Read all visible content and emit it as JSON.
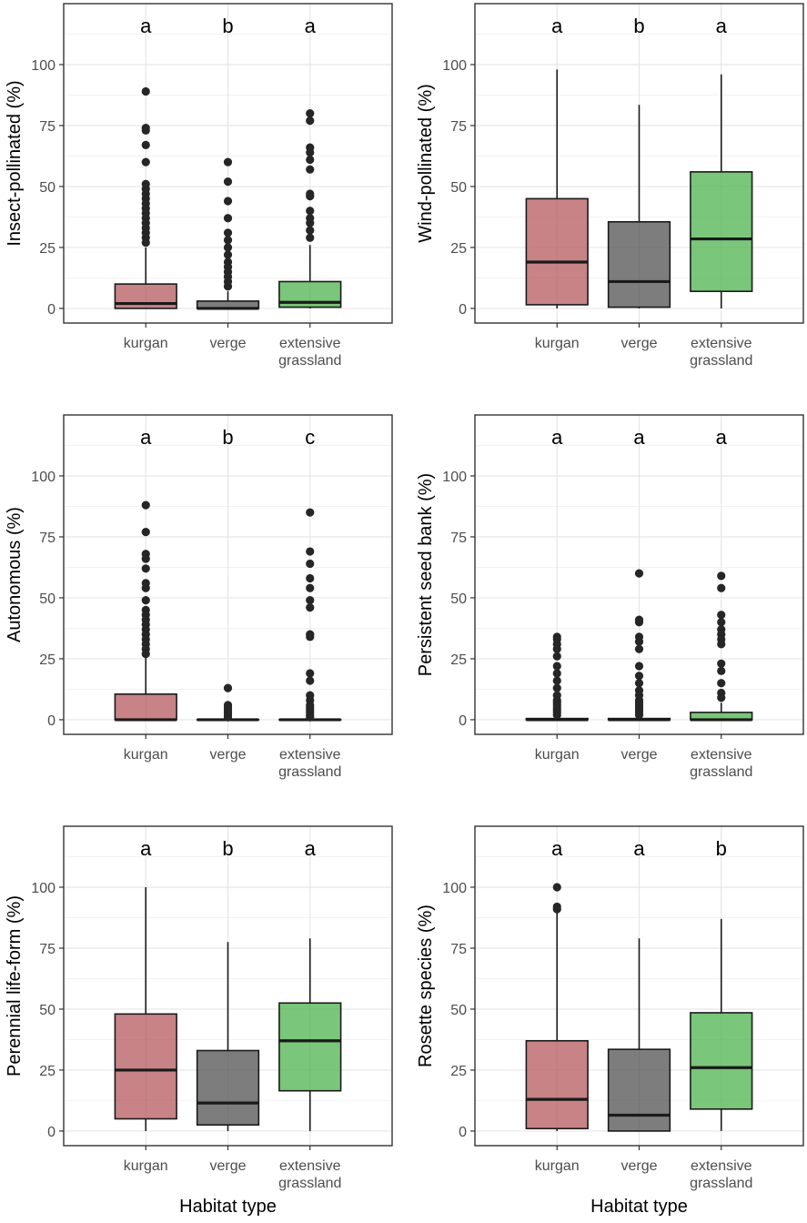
{
  "chart_data": [
    {
      "type": "boxplot",
      "ylabel": "Insect-pollinated (%)",
      "xlabel": "",
      "categories": [
        "kurgan",
        "verge",
        "extensive grassland"
      ],
      "tick_labels": [
        [
          "kurgan"
        ],
        [
          "verge"
        ],
        [
          "extensive",
          "grassland"
        ]
      ],
      "ylim": [
        -6,
        125
      ],
      "yticks": [
        0,
        25,
        50,
        75,
        100
      ],
      "letters": [
        "a",
        "b",
        "a"
      ],
      "boxes": [
        {
          "q1": 0,
          "median": 2,
          "q3": 10,
          "whisker_low": 0,
          "whisker_high": 25,
          "outliers": [
            27,
            29,
            31,
            33,
            35,
            37,
            39,
            41,
            43,
            45,
            47,
            49,
            51,
            60,
            67,
            73,
            74,
            89
          ]
        },
        {
          "q1": 0,
          "median": 0,
          "q3": 3,
          "whisker_low": 0,
          "whisker_high": 7,
          "outliers": [
            9,
            11,
            13,
            15,
            17,
            19,
            22,
            25,
            28,
            31,
            37,
            44,
            52,
            60
          ]
        },
        {
          "q1": 0.5,
          "median": 2.5,
          "q3": 11,
          "whisker_low": 0,
          "whisker_high": 26,
          "outliers": [
            29,
            32,
            35,
            37,
            40,
            46,
            47,
            57,
            61,
            64,
            66,
            77,
            80
          ]
        }
      ]
    },
    {
      "type": "boxplot",
      "ylabel": "Wind-pollinated (%)",
      "xlabel": "",
      "categories": [
        "kurgan",
        "verge",
        "extensive grassland"
      ],
      "tick_labels": [
        [
          "kurgan"
        ],
        [
          "verge"
        ],
        [
          "extensive",
          "grassland"
        ]
      ],
      "ylim": [
        -6,
        125
      ],
      "yticks": [
        0,
        25,
        50,
        75,
        100
      ],
      "letters": [
        "a",
        "b",
        "a"
      ],
      "boxes": [
        {
          "q1": 1.5,
          "median": 19,
          "q3": 45,
          "whisker_low": 0,
          "whisker_high": 98,
          "outliers": []
        },
        {
          "q1": 0.5,
          "median": 11,
          "q3": 35.5,
          "whisker_low": 0,
          "whisker_high": 83.5,
          "outliers": []
        },
        {
          "q1": 7,
          "median": 28.5,
          "q3": 56,
          "whisker_low": 0,
          "whisker_high": 96,
          "outliers": []
        }
      ]
    },
    {
      "type": "boxplot",
      "ylabel": "Autonomous (%)",
      "xlabel": "",
      "categories": [
        "kurgan",
        "verge",
        "extensive grassland"
      ],
      "tick_labels": [
        [
          "kurgan"
        ],
        [
          "verge"
        ],
        [
          "extensive",
          "grassland"
        ]
      ],
      "ylim": [
        -6,
        125
      ],
      "yticks": [
        0,
        25,
        50,
        75,
        100
      ],
      "letters": [
        "a",
        "b",
        "c"
      ],
      "boxes": [
        {
          "q1": 0,
          "median": 0,
          "q3": 10.5,
          "whisker_low": 0,
          "whisker_high": 26,
          "outliers": [
            27,
            29,
            31,
            33,
            35,
            37,
            39,
            41,
            43,
            45,
            49,
            54,
            56,
            62,
            66,
            68,
            77,
            88
          ]
        },
        {
          "q1": 0,
          "median": 0,
          "q3": 0,
          "whisker_low": 0,
          "whisker_high": 0,
          "outliers": [
            1,
            2,
            3,
            4,
            5,
            6,
            13
          ]
        },
        {
          "q1": 0,
          "median": 0,
          "q3": 0,
          "whisker_low": 0,
          "whisker_high": 0,
          "outliers": [
            1,
            2,
            3,
            4,
            5,
            6,
            8,
            10,
            16,
            19,
            34,
            35,
            46,
            49,
            54,
            58,
            64,
            69,
            85
          ]
        }
      ]
    },
    {
      "type": "boxplot",
      "ylabel": "Persistent seed bank (%)",
      "xlabel": "",
      "categories": [
        "kurgan",
        "verge",
        "extensive grassland"
      ],
      "tick_labels": [
        [
          "kurgan"
        ],
        [
          "verge"
        ],
        [
          "extensive",
          "grassland"
        ]
      ],
      "ylim": [
        -6,
        125
      ],
      "yticks": [
        0,
        25,
        50,
        75,
        100
      ],
      "letters": [
        "a",
        "a",
        "a"
      ],
      "boxes": [
        {
          "q1": 0,
          "median": 0,
          "q3": 0.5,
          "whisker_low": 0,
          "whisker_high": 1,
          "outliers": [
            2,
            3,
            4,
            5,
            6,
            7,
            8,
            10,
            13,
            16,
            19,
            22,
            26,
            29,
            31,
            33,
            34
          ]
        },
        {
          "q1": 0,
          "median": 0,
          "q3": 0.5,
          "whisker_low": 0,
          "whisker_high": 1,
          "outliers": [
            2,
            3,
            4,
            5,
            6,
            7,
            8,
            10,
            12,
            15,
            18,
            22,
            29,
            32,
            34,
            40,
            41,
            60
          ]
        },
        {
          "q1": 0,
          "median": 0,
          "q3": 3,
          "whisker_low": 0,
          "whisker_high": 7,
          "outliers": [
            9,
            11,
            15,
            20,
            23,
            31,
            33,
            35,
            37,
            40,
            43,
            54,
            59
          ]
        }
      ]
    },
    {
      "type": "boxplot",
      "ylabel": "Perennial life-form (%)",
      "xlabel": "Habitat type",
      "categories": [
        "kurgan",
        "verge",
        "extensive grassland"
      ],
      "tick_labels": [
        [
          "kurgan"
        ],
        [
          "verge"
        ],
        [
          "extensive",
          "grassland"
        ]
      ],
      "ylim": [
        -6,
        125
      ],
      "yticks": [
        0,
        25,
        50,
        75,
        100
      ],
      "letters": [
        "a",
        "b",
        "a"
      ],
      "boxes": [
        {
          "q1": 5,
          "median": 25,
          "q3": 48,
          "whisker_low": 0,
          "whisker_high": 100,
          "outliers": []
        },
        {
          "q1": 2.5,
          "median": 11.5,
          "q3": 33,
          "whisker_low": 0,
          "whisker_high": 77.5,
          "outliers": []
        },
        {
          "q1": 16.5,
          "median": 37,
          "q3": 52.5,
          "whisker_low": 0,
          "whisker_high": 79,
          "outliers": []
        }
      ]
    },
    {
      "type": "boxplot",
      "ylabel": "Rosette species (%)",
      "xlabel": "Habitat type",
      "categories": [
        "kurgan",
        "verge",
        "extensive grassland"
      ],
      "tick_labels": [
        [
          "kurgan"
        ],
        [
          "verge"
        ],
        [
          "extensive",
          "grassland"
        ]
      ],
      "ylim": [
        -6,
        125
      ],
      "yticks": [
        0,
        25,
        50,
        75,
        100
      ],
      "letters": [
        "a",
        "a",
        "b"
      ],
      "boxes": [
        {
          "q1": 1,
          "median": 13,
          "q3": 37,
          "whisker_low": 0,
          "whisker_high": 90,
          "outliers": [
            91,
            92,
            100
          ]
        },
        {
          "q1": 0,
          "median": 6.5,
          "q3": 33.5,
          "whisker_low": 0,
          "whisker_high": 79,
          "outliers": []
        },
        {
          "q1": 9,
          "median": 26,
          "q3": 48.5,
          "whisker_low": 0,
          "whisker_high": 87,
          "outliers": []
        }
      ]
    }
  ],
  "colors": {
    "box_fills": [
      "#b55a5e",
      "#525252",
      "#4db34d"
    ],
    "box_opacity": 0.75,
    "grid_major": "#e6e6e6",
    "grid_minor": "#f2f2f2",
    "panel_border": "#333333",
    "text": "#000000",
    "tick_text": "#4d4d4d"
  }
}
